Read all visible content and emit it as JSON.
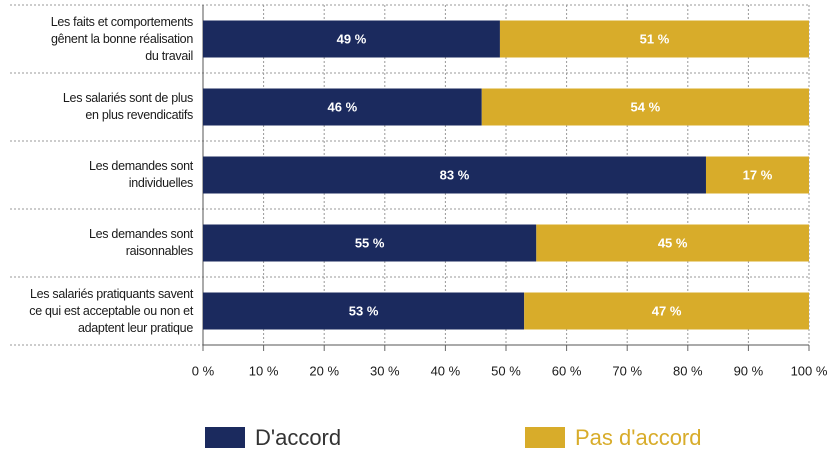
{
  "chart_data": {
    "type": "stacked-bar-horizontal",
    "categories": [
      "Les faits et comportements\ngênent la bonne réalisation\ndu travail",
      "Les salariés sont de plus\nen plus revendicatifs",
      "Les demandes sont\nindividuelles",
      "Les demandes sont\nraisonnables",
      "Les salariés pratiquants savent\nce qui est acceptable ou non et\nadaptent leur pratique"
    ],
    "series": [
      {
        "name": "D'accord",
        "color": "#1b2a5e",
        "values": [
          49,
          46,
          83,
          55,
          53
        ],
        "value_labels": [
          "49 %",
          "46 %",
          "83 %",
          "55 %",
          "53 %"
        ]
      },
      {
        "name": "Pas d'accord",
        "color": "#d8ac2a",
        "values": [
          51,
          54,
          17,
          45,
          47
        ],
        "value_labels": [
          "51 %",
          "54 %",
          "17 %",
          "45 %",
          "47 %"
        ]
      }
    ],
    "xlim": [
      0,
      100
    ],
    "xticks": [
      {
        "value": 0,
        "label": "0 %"
      },
      {
        "value": 10,
        "label": "10 %"
      },
      {
        "value": 20,
        "label": "20 %"
      },
      {
        "value": 30,
        "label": "30 %"
      },
      {
        "value": 40,
        "label": "40 %"
      },
      {
        "value": 50,
        "label": "50 %"
      },
      {
        "value": 60,
        "label": "60 %"
      },
      {
        "value": 70,
        "label": "70 %"
      },
      {
        "value": 80,
        "label": "80 %"
      },
      {
        "value": 90,
        "label": "90 %"
      },
      {
        "value": 100,
        "label": "100 %"
      }
    ],
    "grid": true,
    "legend": "bottom"
  }
}
